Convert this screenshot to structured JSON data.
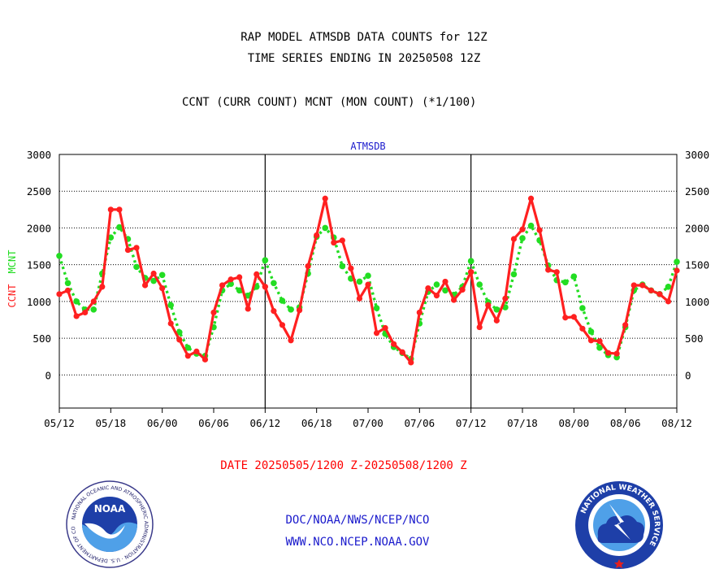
{
  "header": {
    "title_line1": "RAP MODEL ATMSDB DATA COUNTS for 12Z",
    "title_line2": "TIME SERIES ENDING IN 20250508 12Z",
    "subtitle": "CCNT (CURR COUNT) MCNT (MON COUNT) (*1/100)"
  },
  "footer": {
    "date_range": "DATE 20250505/1200 Z-20250508/1200 Z",
    "org_line": "DOC/NOAA/NWS/NCEP/NCO",
    "url_line": "WWW.NCO.NCEP.NOAA.GOV"
  },
  "logos": {
    "noaa_text": "NOAA",
    "noaa_ring": "NATIONAL OCEANIC AND ATMOSPHERIC ADMINISTRATION · U.S. DEPARTMENT OF COMMERCE",
    "nws_ring": "NATIONAL WEATHER SERVICE"
  },
  "colors": {
    "ccnt": "#ff2020",
    "mcnt": "#22dd22",
    "grid": "#000000",
    "footer_blue": "#1a1acc"
  },
  "chart_data": {
    "type": "line",
    "title": "ATMSDB",
    "ylabel_left_ccnt": "CCNT",
    "ylabel_left_mcnt": "MCNT",
    "ylim": [
      -450,
      3000
    ],
    "yticks": [
      0,
      500,
      1000,
      1500,
      2000,
      2500,
      3000
    ],
    "panels": [
      {
        "x_tick_labels": [
          "05/12",
          "05/18",
          "06/00",
          "06/06",
          "06/12"
        ]
      },
      {
        "x_tick_labels": [
          "06/12",
          "06/18",
          "07/00",
          "07/06",
          "07/12"
        ]
      },
      {
        "x_tick_labels": [
          "07/12",
          "07/18",
          "08/00",
          "08/06",
          "08/12"
        ]
      }
    ],
    "series": [
      {
        "name": "CCNT",
        "values": [
          [
            1100,
            1150,
            800,
            850,
            1000,
            1200,
            2250,
            2250,
            1700,
            1730,
            1220,
            1380,
            1180,
            700,
            480,
            260,
            320,
            210,
            850,
            1220,
            1300,
            1330,
            900,
            1370,
            1200
          ],
          [
            1200,
            870,
            680,
            470,
            880,
            1480,
            1900,
            2400,
            1800,
            1830,
            1450,
            1040,
            1230,
            570,
            640,
            420,
            310,
            170,
            850,
            1180,
            1080,
            1270,
            1020,
            1160,
            1400
          ],
          [
            1400,
            650,
            950,
            740,
            1040,
            1850,
            1980,
            2400,
            1970,
            1430,
            1400,
            780,
            790,
            630,
            470,
            460,
            300,
            290,
            680,
            1220,
            1220,
            1150,
            1100,
            1000,
            1420
          ]
        ]
      },
      {
        "name": "MCNT",
        "values": [
          [
            1620,
            1250,
            1000,
            890,
            890,
            1380,
            1870,
            2010,
            1850,
            1470,
            1320,
            1280,
            1360,
            950,
            580,
            370,
            290,
            260,
            650,
            1150,
            1240,
            1150,
            1080,
            1200,
            1560
          ],
          [
            1560,
            1250,
            1010,
            890,
            920,
            1380,
            1880,
            2000,
            1870,
            1480,
            1310,
            1270,
            1350,
            910,
            560,
            380,
            300,
            220,
            700,
            1130,
            1230,
            1150,
            1090,
            1200,
            1550
          ],
          [
            1550,
            1230,
            990,
            890,
            920,
            1370,
            1860,
            2030,
            1830,
            1490,
            1290,
            1260,
            1340,
            910,
            590,
            370,
            270,
            240,
            650,
            1150,
            1230,
            1150,
            1100,
            1200,
            1540
          ]
        ]
      }
    ]
  }
}
